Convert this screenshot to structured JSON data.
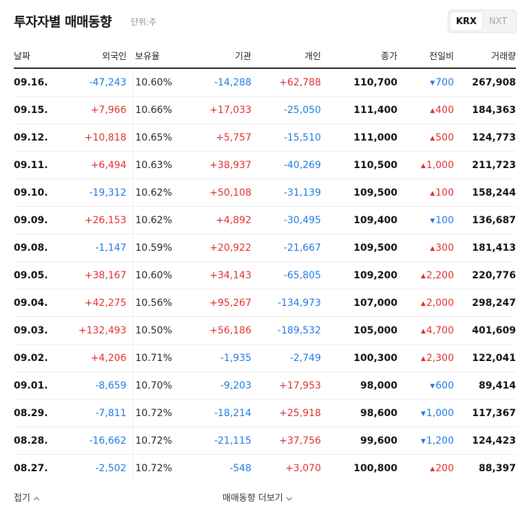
{
  "header": {
    "title": "투자자별 매매동향",
    "unit": "단위:주",
    "markets": [
      "KRX",
      "NXT"
    ],
    "active_market": "KRX"
  },
  "columns": [
    "날짜",
    "외국인",
    "보유율",
    "기관",
    "개인",
    "종가",
    "전일비",
    "거래량"
  ],
  "rows": [
    {
      "date": "09.16.",
      "foreign": "-47,243",
      "hold": "10.60%",
      "inst": "-14,288",
      "indiv": "+62,788",
      "close": "110,700",
      "dir": "down",
      "change": "700",
      "volume": "267,908"
    },
    {
      "date": "09.15.",
      "foreign": "+7,966",
      "hold": "10.66%",
      "inst": "+17,033",
      "indiv": "-25,050",
      "close": "111,400",
      "dir": "up",
      "change": "400",
      "volume": "184,363"
    },
    {
      "date": "09.12.",
      "foreign": "+10,818",
      "hold": "10.65%",
      "inst": "+5,757",
      "indiv": "-15,510",
      "close": "111,000",
      "dir": "up",
      "change": "500",
      "volume": "124,773"
    },
    {
      "date": "09.11.",
      "foreign": "+6,494",
      "hold": "10.63%",
      "inst": "+38,937",
      "indiv": "-40,269",
      "close": "110,500",
      "dir": "up",
      "change": "1,000",
      "volume": "211,723"
    },
    {
      "date": "09.10.",
      "foreign": "-19,312",
      "hold": "10.62%",
      "inst": "+50,108",
      "indiv": "-31,139",
      "close": "109,500",
      "dir": "up",
      "change": "100",
      "volume": "158,244"
    },
    {
      "date": "09.09.",
      "foreign": "+26,153",
      "hold": "10.62%",
      "inst": "+4,892",
      "indiv": "-30,495",
      "close": "109,400",
      "dir": "down",
      "change": "100",
      "volume": "136,687"
    },
    {
      "date": "09.08.",
      "foreign": "-1,147",
      "hold": "10.59%",
      "inst": "+20,922",
      "indiv": "-21,667",
      "close": "109,500",
      "dir": "up",
      "change": "300",
      "volume": "181,413"
    },
    {
      "date": "09.05.",
      "foreign": "+38,167",
      "hold": "10.60%",
      "inst": "+34,143",
      "indiv": "-65,805",
      "close": "109,200",
      "dir": "up",
      "change": "2,200",
      "volume": "220,776"
    },
    {
      "date": "09.04.",
      "foreign": "+42,275",
      "hold": "10.56%",
      "inst": "+95,267",
      "indiv": "-134,973",
      "close": "107,000",
      "dir": "up",
      "change": "2,000",
      "volume": "298,247"
    },
    {
      "date": "09.03.",
      "foreign": "+132,493",
      "hold": "10.50%",
      "inst": "+56,186",
      "indiv": "-189,532",
      "close": "105,000",
      "dir": "up",
      "change": "4,700",
      "volume": "401,609"
    },
    {
      "date": "09.02.",
      "foreign": "+4,206",
      "hold": "10.71%",
      "inst": "-1,935",
      "indiv": "-2,749",
      "close": "100,300",
      "dir": "up",
      "change": "2,300",
      "volume": "122,041"
    },
    {
      "date": "09.01.",
      "foreign": "-8,659",
      "hold": "10.70%",
      "inst": "-9,203",
      "indiv": "+17,953",
      "close": "98,000",
      "dir": "down",
      "change": "600",
      "volume": "89,414"
    },
    {
      "date": "08.29.",
      "foreign": "-7,811",
      "hold": "10.72%",
      "inst": "-18,214",
      "indiv": "+25,918",
      "close": "98,600",
      "dir": "down",
      "change": "1,000",
      "volume": "117,367"
    },
    {
      "date": "08.28.",
      "foreign": "-16,662",
      "hold": "10.72%",
      "inst": "-21,115",
      "indiv": "+37,756",
      "close": "99,600",
      "dir": "down",
      "change": "1,200",
      "volume": "124,423"
    },
    {
      "date": "08.27.",
      "foreign": "-2,502",
      "hold": "10.72%",
      "inst": "-548",
      "indiv": "+3,070",
      "close": "100,800",
      "dir": "up",
      "change": "200",
      "volume": "88,397"
    }
  ],
  "footer": {
    "collapse_label": "접기",
    "more_label": "매매동향 더보기"
  },
  "colors": {
    "up": "#e22c2c",
    "down": "#1b78e4"
  }
}
